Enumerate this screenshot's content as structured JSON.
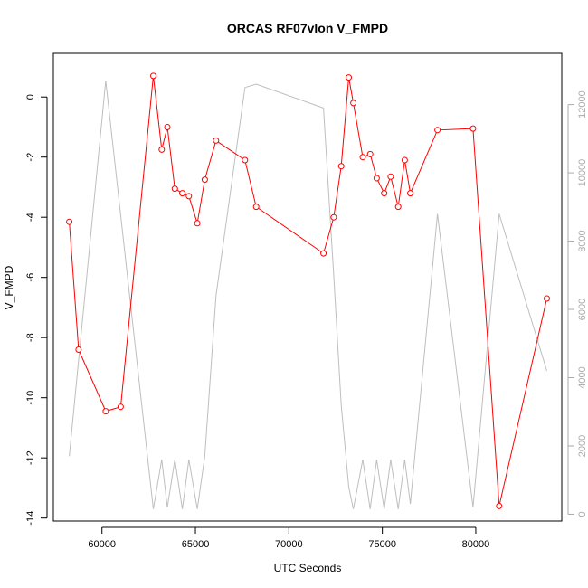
{
  "chart_data": {
    "type": "line",
    "title": "ORCAS RF07vlon V_FMPD",
    "xlabel": "UTC Seconds",
    "ylabel": "V_FMPD",
    "xlim": [
      57400,
      84600
    ],
    "ylim": [
      -14.1,
      1.45
    ],
    "y2lim": [
      -200,
      13500
    ],
    "xticks": [
      60000,
      65000,
      70000,
      75000,
      80000
    ],
    "yticks": [
      -14,
      -12,
      -10,
      -8,
      -6,
      -4,
      -2,
      0
    ],
    "y2ticks": [
      0,
      2000,
      4000,
      6000,
      8000,
      10000,
      12000
    ],
    "xtick_labels": [
      "60000",
      "65000",
      "70000",
      "75000",
      "80000"
    ],
    "ytick_labels": [
      "-14",
      "-12",
      "-10",
      "-8",
      "-6",
      "-4",
      "-2",
      "0"
    ],
    "y2tick_labels": [
      "0",
      "2000",
      "4000",
      "6000",
      "8000",
      "10000",
      "12000"
    ],
    "colors": {
      "primary": "#ff0000",
      "secondary": "#bebebe",
      "axis": "#000000",
      "axis_right": "#aaaaaa"
    },
    "series": [
      {
        "axis": "left",
        "marker": "open-circle",
        "color": "#ff0000",
        "x": [
          58250,
          58750,
          60200,
          61000,
          62750,
          63200,
          63500,
          63900,
          64300,
          64650,
          65100,
          65500,
          66100,
          67650,
          68250,
          71850,
          72400,
          72800,
          73200,
          73450,
          73950,
          74350,
          74700,
          75100,
          75450,
          75850,
          76200,
          76500,
          77950,
          79850,
          81250,
          83800
        ],
        "y": [
          -4.15,
          -8.4,
          -10.45,
          -10.3,
          0.7,
          -1.75,
          -1.0,
          -3.05,
          -3.2,
          -3.3,
          -4.2,
          -2.75,
          -1.45,
          -2.1,
          -3.65,
          -5.2,
          -4.0,
          -2.3,
          0.65,
          -0.2,
          -2.0,
          -1.9,
          -2.7,
          -3.2,
          -2.65,
          -3.65,
          -2.1,
          -3.2,
          -1.1,
          -1.05,
          -13.6,
          -6.7
        ]
      },
      {
        "axis": "right",
        "color": "#bebebe",
        "x": [
          58250,
          60200,
          62750,
          63200,
          63500,
          63900,
          64300,
          64650,
          65100,
          65500,
          66100,
          67650,
          68250,
          71850,
          72400,
          72800,
          73200,
          73450,
          73950,
          74350,
          74700,
          75100,
          75450,
          75850,
          76200,
          76500,
          77950,
          79850,
          81250,
          83800
        ],
        "y": [
          1700,
          12700,
          150,
          1600,
          200,
          1600,
          150,
          1600,
          150,
          1700,
          6400,
          12500,
          12600,
          11900,
          7000,
          3200,
          800,
          150,
          1600,
          150,
          1600,
          150,
          1600,
          150,
          1600,
          300,
          8800,
          200,
          8800,
          4200
        ]
      }
    ]
  }
}
